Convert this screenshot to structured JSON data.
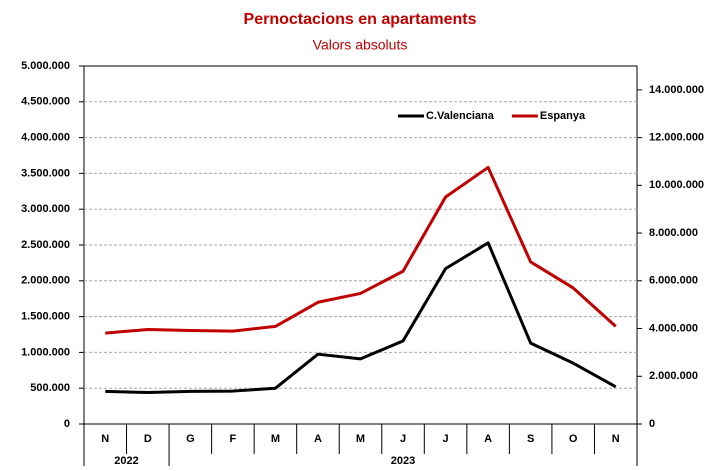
{
  "chart_data": {
    "type": "line",
    "title": "Pernoctacions en apartaments",
    "subtitle": "Valors absoluts",
    "categories": [
      "N",
      "D",
      "G",
      "F",
      "M",
      "A",
      "M",
      "J",
      "J",
      "A",
      "S",
      "O",
      "N"
    ],
    "years": [
      "2022",
      "2022",
      "2023",
      "2023",
      "2023",
      "2023",
      "2023",
      "2023",
      "2023",
      "2023",
      "2023",
      "2023",
      "2023"
    ],
    "series": [
      {
        "name": "C.Valenciana",
        "color": "#000000",
        "values": [
          455000,
          440000,
          455000,
          460000,
          500000,
          975000,
          910000,
          1160000,
          2170000,
          2530000,
          1130000,
          850000,
          520000
        ]
      },
      {
        "name": "Espanya",
        "color": "#c00000",
        "axis": "y2",
        "values": [
          3810000,
          3960000,
          3920000,
          3890000,
          4090000,
          5100000,
          5470000,
          6400000,
          9510000,
          10750000,
          6790000,
          5700000,
          4090000
        ]
      }
    ],
    "ylim": [
      0,
      5000000
    ],
    "yticks": [
      0,
      {
        "value": 500000,
        "label": "500.000"
      },
      {
        "value": 1000000,
        "label": "1.000.000"
      },
      {
        "value": 1500000,
        "label": "1.500.000"
      },
      {
        "value": 2000000,
        "label": "2.000.000"
      },
      {
        "value": 2500000,
        "label": "2.500.000"
      },
      {
        "value": 3000000,
        "label": "3.000.000"
      },
      {
        "value": 3500000,
        "label": "3.500.000"
      },
      {
        "value": 4000000,
        "label": "4.000.000"
      },
      {
        "value": 4500000,
        "label": "4.500.000"
      },
      {
        "value": 5000000,
        "label": "5.000.000"
      }
    ],
    "y2lim": [
      0,
      15000000
    ],
    "y2ticks": [
      0,
      {
        "value": 2000000,
        "label": "2.000.000"
      },
      {
        "value": 4000000,
        "label": "4.000.000"
      },
      {
        "value": 6000000,
        "label": "6.000.000"
      },
      {
        "value": 8000000,
        "label": "8.000.000"
      },
      {
        "value": 10000000,
        "label": "10.000.000"
      },
      {
        "value": 12000000,
        "label": "12.000.000"
      },
      {
        "value": 14000000,
        "label": "14.000.000"
      }
    ],
    "grid": true,
    "legend": "top-right"
  }
}
